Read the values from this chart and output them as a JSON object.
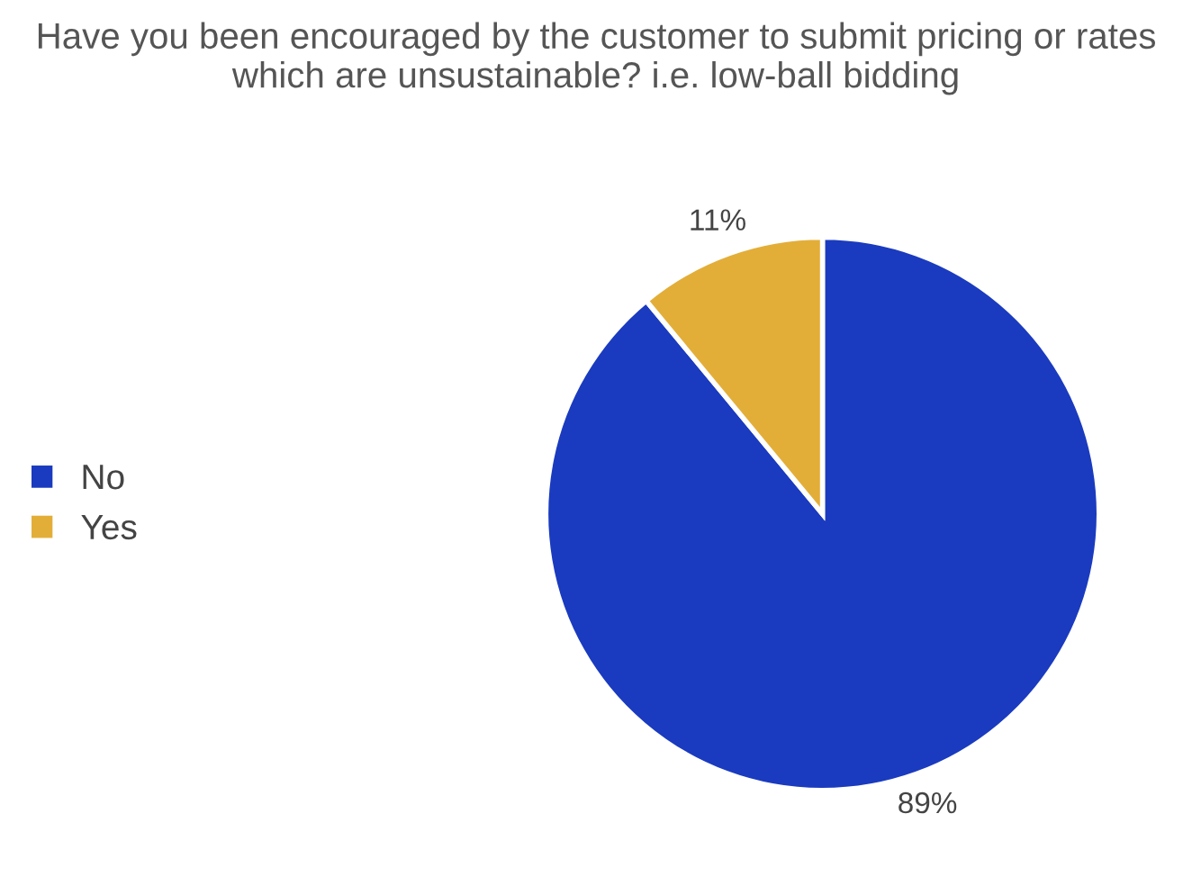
{
  "chart_data": {
    "type": "pie",
    "title": "Have you been encouraged by the customer to submit pricing or rates which are unsustainable? i.e. low-ball bidding",
    "categories": [
      "No",
      "Yes"
    ],
    "values": [
      89,
      11
    ],
    "colors": [
      "#1a3bbf",
      "#e3ae38"
    ],
    "value_labels": [
      "89%",
      "11%"
    ],
    "legend": "left"
  }
}
